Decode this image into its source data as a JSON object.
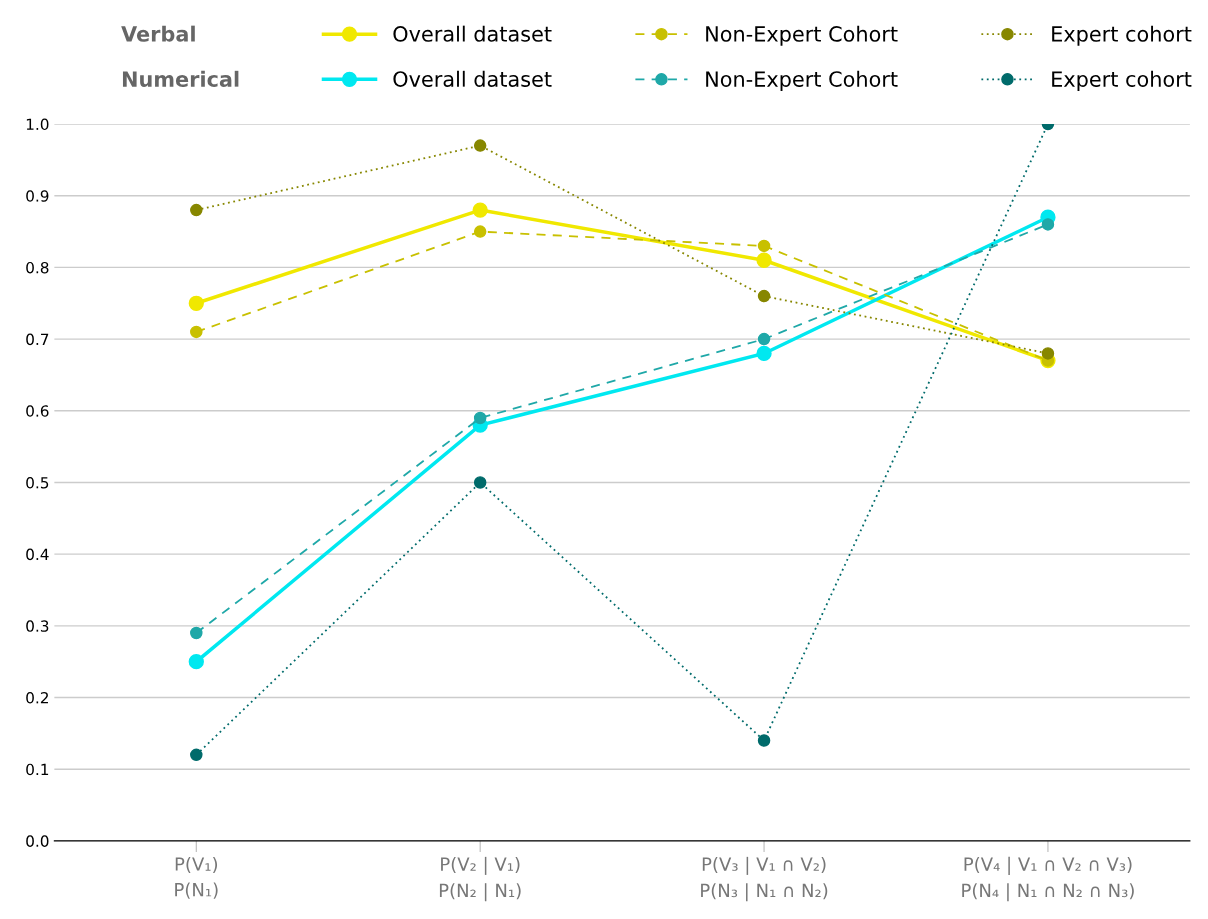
{
  "chart_data": {
    "type": "line",
    "categories": [
      "P(V₁)\nP(N₁)",
      "P(V₂ | V₁)\nP(N₂ | N₁)",
      "P(V₃ | V₁ ∩ V₂)\nP(N₃ | N₁ ∩ N₂)",
      "P(V₄ | V₁ ∩ V₂ ∩ V₃)\nP(N₄ | N₁ ∩ N₂ ∩ N₃)"
    ],
    "annotations": [
      "Verbal",
      "Numerical"
    ],
    "series": [
      {
        "name": "Overall dataset",
        "color": "#f0e800",
        "line_style": "solid",
        "values": [
          0.75,
          0.88,
          0.81,
          0.67
        ]
      },
      {
        "name": "Non-Expert Cohort",
        "color": "#c8c000",
        "line_style": "dashed",
        "values": [
          0.71,
          0.85,
          0.83,
          0.67
        ]
      },
      {
        "name": "Expert cohort",
        "color": "#878700",
        "line_style": "dotted",
        "values": [
          0.88,
          0.97,
          0.76,
          0.68
        ]
      },
      {
        "name": "Overall dataset",
        "color": "#00e8f0",
        "line_style": "solid",
        "values": [
          0.25,
          0.58,
          0.68,
          0.87
        ]
      },
      {
        "name": "Non-Expert Cohort",
        "color": "#1fa8a8",
        "line_style": "dashed",
        "values": [
          0.29,
          0.59,
          0.7,
          0.86
        ]
      },
      {
        "name": "Expert cohort",
        "color": "#006b6b",
        "line_style": "dotted",
        "values": [
          0.12,
          0.5,
          0.14,
          1.0
        ]
      }
    ],
    "ylim": [
      0,
      1.0
    ],
    "yticks": [
      {
        "value": 0,
        "label": "0.0"
      },
      {
        "value": 0.1,
        "label": "0.1"
      },
      {
        "value": 0.2,
        "label": "0.2"
      },
      {
        "value": 0.3,
        "label": "0.3"
      },
      {
        "value": 0.4,
        "label": "0.4"
      },
      {
        "value": 0.5,
        "label": "0.5"
      },
      {
        "value": 0.6,
        "label": "0.6"
      },
      {
        "value": 0.7,
        "label": "0.7"
      },
      {
        "value": 0.8,
        "label": "0.8"
      },
      {
        "value": 0.9,
        "label": "0.9"
      },
      {
        "value": 1.0,
        "label": "1.0"
      }
    ],
    "grid": "y",
    "legend": "top",
    "marker": "circle"
  }
}
